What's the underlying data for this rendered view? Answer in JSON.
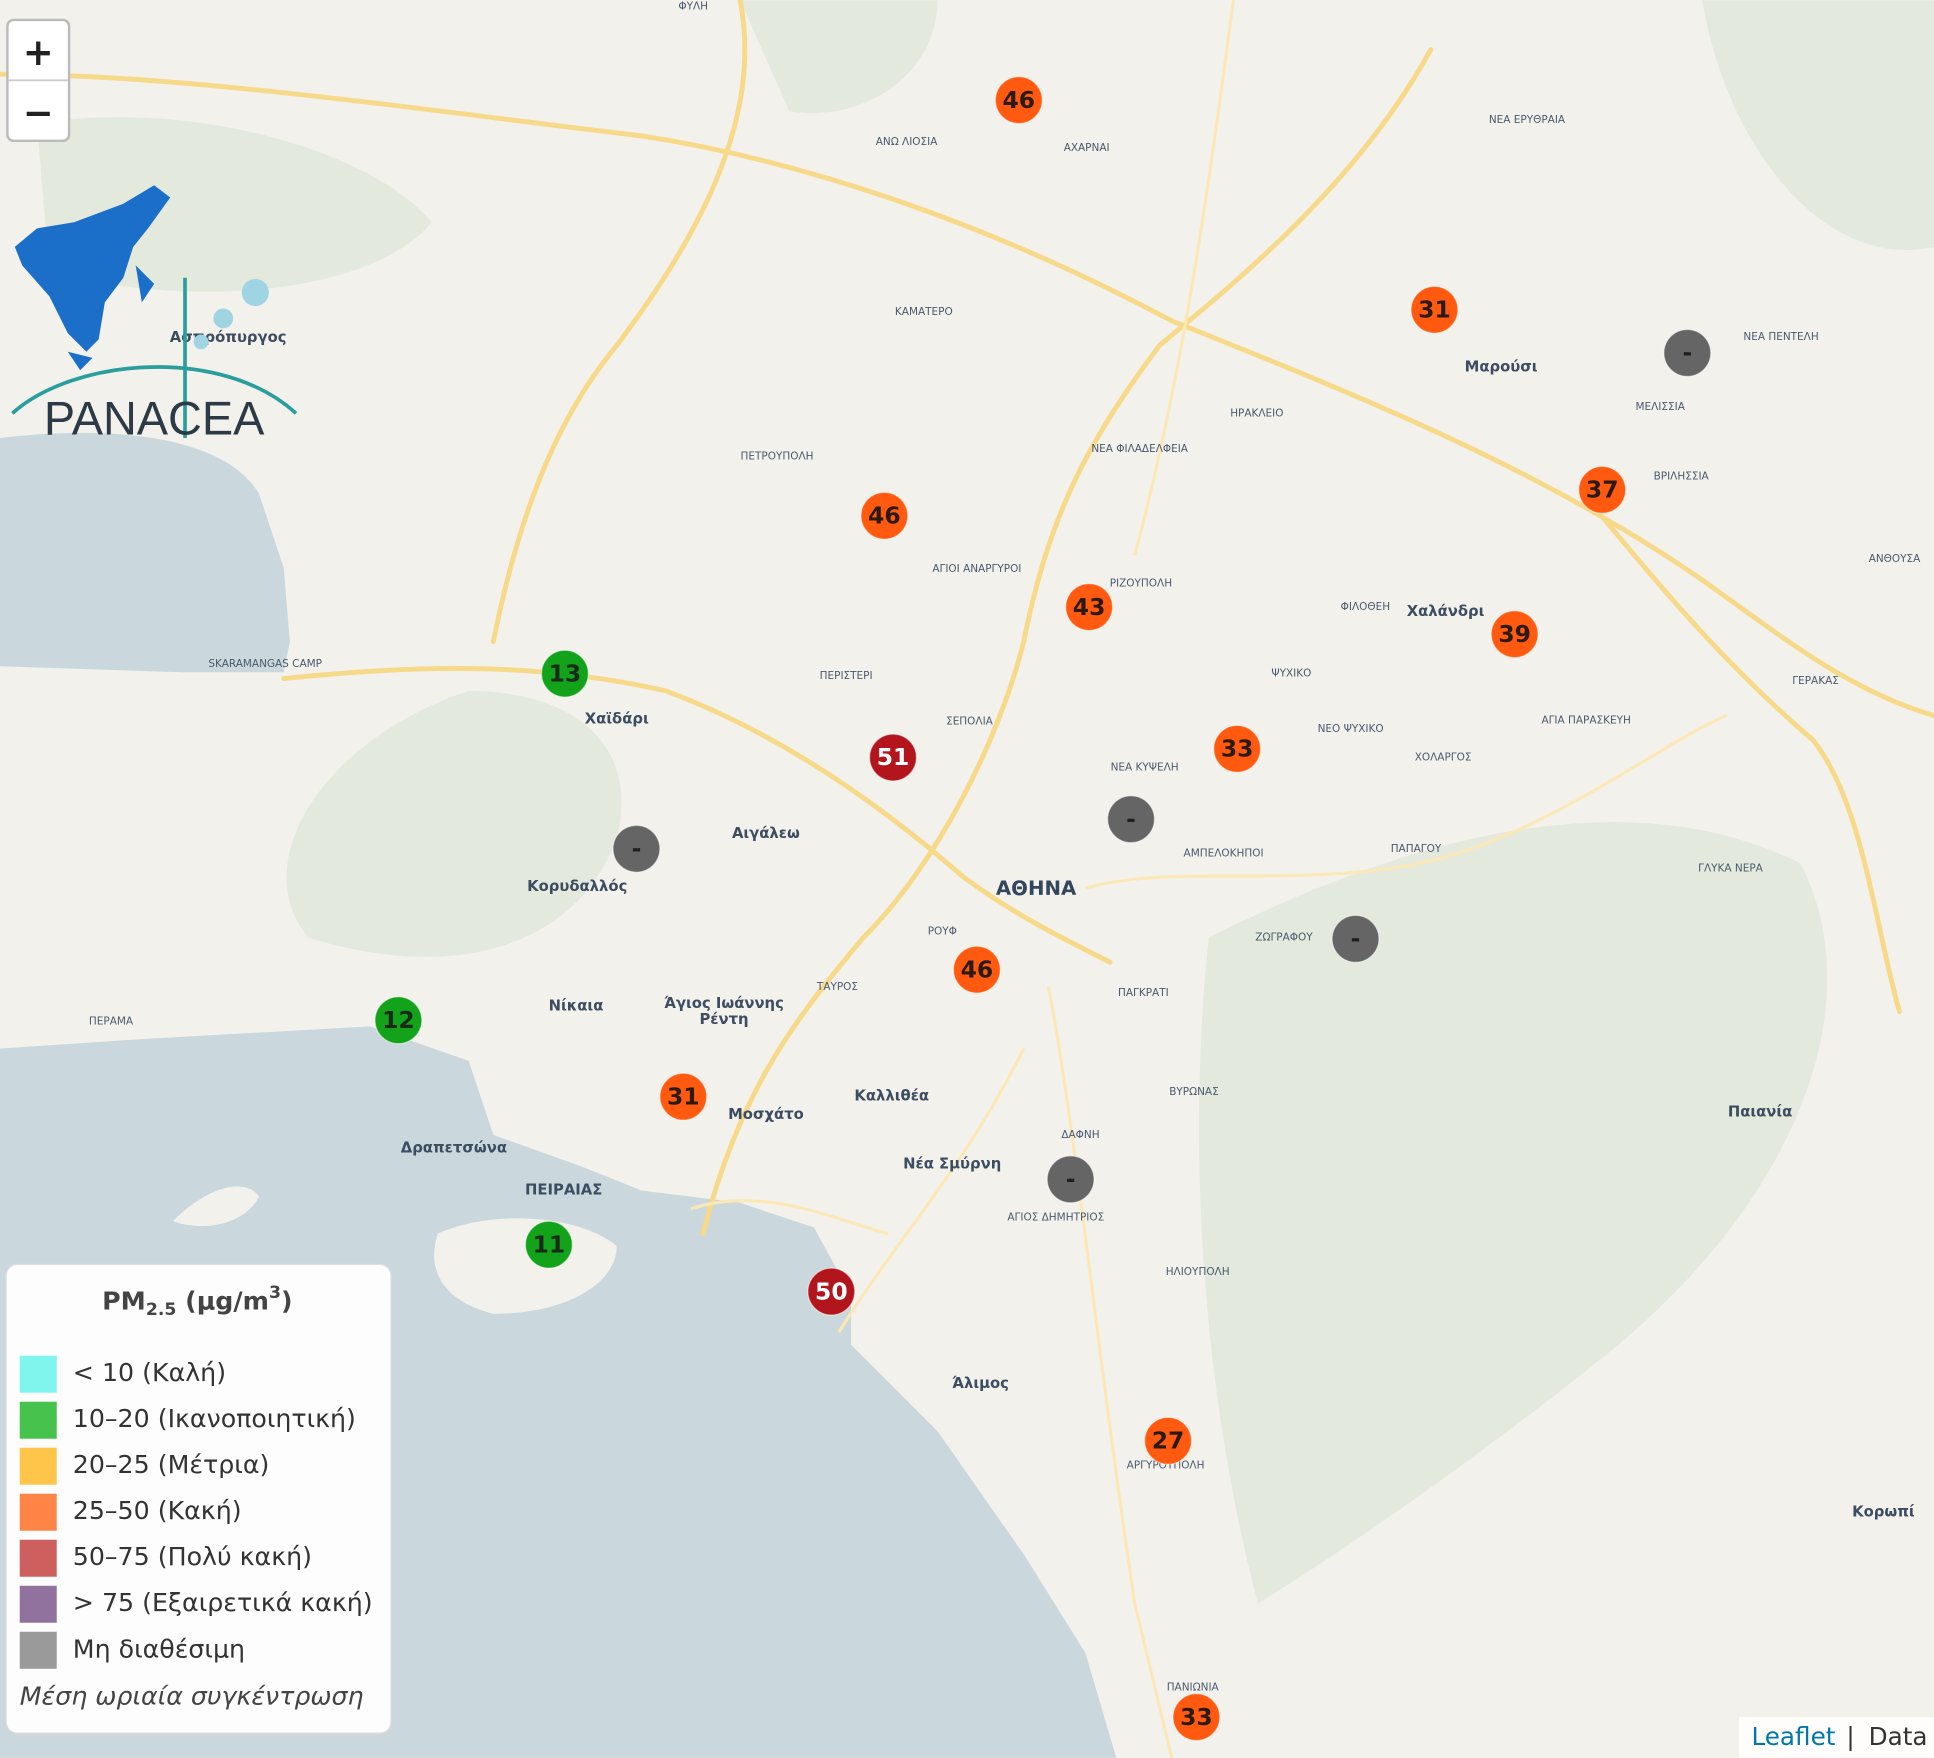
{
  "zoom": {
    "in": "+",
    "out": "−"
  },
  "logo": {
    "text": "PANACEA"
  },
  "places": [
    "ΑΘΗΝΑ",
    "Χαϊδάρι",
    "Αιγάλεω",
    "Κορυδαλλός",
    "Νίκαια",
    "Άγιος Ιωάννης",
    "Ρέντη",
    "Μοσχάτο",
    "Καλλιθέα",
    "Νέα Σμύρνη",
    "Δραπετσώνα",
    "ΠΕΙΡΑΙΑΣ",
    "Άλιμος",
    "Χαλάνδρι",
    "Μαρούσι",
    "Παιανία",
    "Κορωπί",
    "Ασπρόπυργος",
    "ΑΝΩ ΛΙΟΣΙΑ",
    "ΑΧΑΡΝΑΙ",
    "ΚΑΜΑΤΕΡΟ",
    "ΠΕΤΡΟΥΠΟΛΗ",
    "ΠΕΡΙΣΤΕΡΙ",
    "ΣΕΠΟΛΙΑ",
    "ΗΡΑΚΛΕΙΟ",
    "ΝΕΑ ΕΡΥΘΡΑΙΑ",
    "ΝΕΑ ΠΕΝΤΕΛΗ",
    "ΜΕΛΙΣΣΙΑ",
    "ΒΡΙΛΗΣΣΙΑ",
    "ΑΝΘΟΥΣΑ",
    "ΓΕΡΑΚΑΣ",
    "ΦΙΛΟΘΕΗ",
    "ΨΥΧΙΚΟ",
    "ΝΕΟ ΨΥΧΙΚΟ",
    "ΧΟΛΑΡΓΟΣ",
    "ΑΓΙΑ ΠΑΡΑΣΚΕΥΗ",
    "ΠΑΠΑΓΟΥ",
    "ΓΛΥΚΑ ΝΕΡΑ",
    "ΝΕΑ ΚΥΨΕΛΗ",
    "ΑΜΠΕΛΟΚΗΠΟΙ",
    "ΖΩΓΡΑΦΟΥ",
    "ΠΑΓΚΡΑΤΙ",
    "ΒΥΡΩΝΑΣ",
    "ΔΑΦΝΗ",
    "ΗΛΙΟΥΠΟΛΗ",
    "ΑΡΓΥΡΟΥΠΟΛΗ",
    "ΠΑΝΙΩΝΙΑ",
    "ΡΟΥΦ",
    "ΤΑΥΡΟΣ",
    "ΠΕΡΑΜΑ",
    "ΡΙΖΟΥΠΟΛΗ",
    "ΝΕΑ ΦΙΛΑΔΕΛΦΕΙΑ",
    "ΑΓΙΟΙ ΑΝΑΡΓΥΡΟΙ",
    "ΦΥΛΗ",
    "ΑΓΙΟΣ ΔΗΜΗΤΡΙΟΣ",
    "SKARAMANGAS CAMP"
  ],
  "markers": [
    {
      "value": 46,
      "color": "#ff5a0f",
      "text_color": "#2a1a10"
    },
    {
      "value": 31,
      "color": "#ff5a0f",
      "text_color": "#2a1a10"
    },
    {
      "value": "-",
      "color": "#656565",
      "text_color": "#1e1e1e"
    },
    {
      "value": 37,
      "color": "#ff5a0f",
      "text_color": "#2a1a10"
    },
    {
      "value": 46,
      "color": "#ff5a0f",
      "text_color": "#2a1a10"
    },
    {
      "value": 43,
      "color": "#ff5a0f",
      "text_color": "#2a1a10"
    },
    {
      "value": 39,
      "color": "#ff5a0f",
      "text_color": "#2a1a10"
    },
    {
      "value": 13,
      "color": "#12a31a",
      "text_color": "#1a2a1a"
    },
    {
      "value": 33,
      "color": "#ff5a0f",
      "text_color": "#2a1a10"
    },
    {
      "value": 51,
      "color": "#b3151d",
      "text_color": "#ffffff"
    },
    {
      "value": "-",
      "color": "#656565",
      "text_color": "#1e1e1e"
    },
    {
      "value": "-",
      "color": "#656565",
      "text_color": "#1e1e1e"
    },
    {
      "value": "-",
      "color": "#656565",
      "text_color": "#1e1e1e"
    },
    {
      "value": 46,
      "color": "#ff5a0f",
      "text_color": "#2a1a10"
    },
    {
      "value": 12,
      "color": "#12a31a",
      "text_color": "#1a2a1a"
    },
    {
      "value": 31,
      "color": "#ff5a0f",
      "text_color": "#2a1a10"
    },
    {
      "value": "-",
      "color": "#656565",
      "text_color": "#1e1e1e"
    },
    {
      "value": 11,
      "color": "#12a31a",
      "text_color": "#1a2a1a"
    },
    {
      "value": 50,
      "color": "#b3151d",
      "text_color": "#ffffff"
    },
    {
      "value": 27,
      "color": "#ff5a0f",
      "text_color": "#2a1a10"
    },
    {
      "value": 33,
      "color": "#ff5a0f",
      "text_color": "#2a1a10"
    }
  ],
  "legend": {
    "title": [
      "PM",
      "2.5",
      " (μg/m",
      "3",
      ")"
    ],
    "items": [
      {
        "label": "< 10 (Καλή)",
        "color": "#7ff5ee"
      },
      {
        "label": "10–20 (Ικανοποιητική)",
        "color": "#47c24c"
      },
      {
        "label": "20–25 (Μέτρια)",
        "color": "#ffc44a"
      },
      {
        "label": "25–50 (Κακή)",
        "color": "#ff8547"
      },
      {
        "label": "50–75 (Πολύ κακή)",
        "color": "#cd5f5f"
      },
      {
        "label": "> 75 (Εξαιρετικά κακή)",
        "color": "#91719d"
      },
      {
        "label": "Μη διαθέσιμη",
        "color": "#9a9a9a"
      }
    ],
    "note": "Μέση ωριαία συγκέντρωση"
  },
  "attribution": [
    "Leaflet",
    "|",
    "Data"
  ]
}
